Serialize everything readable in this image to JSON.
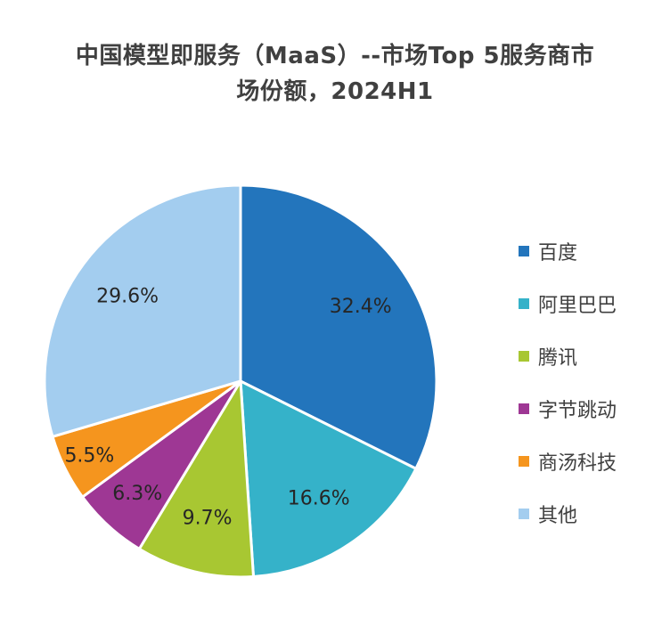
{
  "chart_data": {
    "type": "pie",
    "title_lines": [
      "中国模型即服务（MaaS）--市场Top 5服务商市",
      "场份额，2024H1"
    ],
    "slices": [
      {
        "name": "百度",
        "value": 32.4,
        "label": "32.4%",
        "color": "#2375BC"
      },
      {
        "name": "阿里巴巴",
        "value": 16.6,
        "label": "16.6%",
        "color": "#35B2C9"
      },
      {
        "name": "腾讯",
        "value": 9.7,
        "label": "9.7%",
        "color": "#A8C732"
      },
      {
        "name": "字节跳动",
        "value": 6.3,
        "label": "6.3%",
        "color": "#9E3794"
      },
      {
        "name": "商汤科技",
        "value": 5.5,
        "label": "5.5%",
        "color": "#F5951E"
      },
      {
        "name": "其他",
        "value": 29.6,
        "label": "29.6%",
        "color": "#A3CDEF"
      }
    ],
    "start_angle_deg": 0,
    "direction": "clockwise",
    "legend_position": "right",
    "slice_border_color": "#ffffff"
  }
}
